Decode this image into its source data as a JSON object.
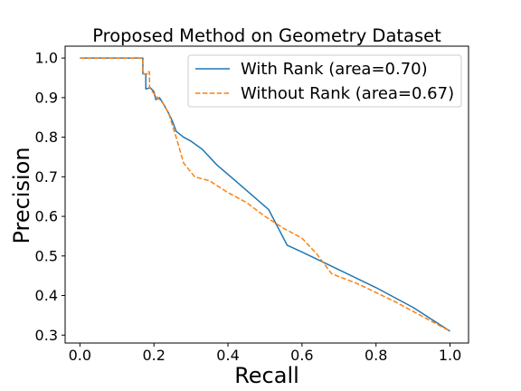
{
  "chart_data": {
    "type": "line",
    "title": "Proposed Method on Geometry Dataset",
    "xlabel": "Recall",
    "ylabel": "Precision",
    "xlim": [
      -0.04,
      1.05
    ],
    "ylim": [
      0.28,
      1.03
    ],
    "xticks": [
      0.0,
      0.2,
      0.4,
      0.6,
      0.8,
      1.0
    ],
    "xtick_labels": [
      "0.0",
      "0.2",
      "0.4",
      "0.6",
      "0.8",
      "1.0"
    ],
    "yticks": [
      0.3,
      0.4,
      0.5,
      0.6,
      0.7,
      0.8,
      0.9,
      1.0
    ],
    "ytick_labels": [
      "0.3",
      "0.4",
      "0.5",
      "0.6",
      "0.7",
      "0.8",
      "0.9",
      "1.0"
    ],
    "grid": false,
    "legend_position": "top-right",
    "series": [
      {
        "name": "With Rank (area=0.70)",
        "color": "#1f77b4",
        "dash": "solid",
        "points": [
          [
            0.0,
            1.0
          ],
          [
            0.17,
            1.0
          ],
          [
            0.17,
            0.96
          ],
          [
            0.178,
            0.96
          ],
          [
            0.178,
            0.922
          ],
          [
            0.19,
            0.925
          ],
          [
            0.2,
            0.915
          ],
          [
            0.205,
            0.895
          ],
          [
            0.215,
            0.9
          ],
          [
            0.225,
            0.885
          ],
          [
            0.24,
            0.86
          ],
          [
            0.25,
            0.84
          ],
          [
            0.26,
            0.815
          ],
          [
            0.28,
            0.8
          ],
          [
            0.3,
            0.79
          ],
          [
            0.33,
            0.77
          ],
          [
            0.37,
            0.73
          ],
          [
            0.42,
            0.69
          ],
          [
            0.51,
            0.617
          ],
          [
            0.56,
            0.527
          ],
          [
            0.6,
            0.51
          ],
          [
            0.7,
            0.465
          ],
          [
            0.8,
            0.42
          ],
          [
            0.9,
            0.37
          ],
          [
            1.0,
            0.31
          ]
        ]
      },
      {
        "name": "Without Rank (area=0.67)",
        "color": "#ff7f0e",
        "dash": "dashed",
        "points": [
          [
            0.0,
            1.0
          ],
          [
            0.17,
            1.0
          ],
          [
            0.17,
            0.96
          ],
          [
            0.183,
            0.96
          ],
          [
            0.183,
            0.965
          ],
          [
            0.188,
            0.965
          ],
          [
            0.188,
            0.925
          ],
          [
            0.2,
            0.91
          ],
          [
            0.21,
            0.9
          ],
          [
            0.225,
            0.885
          ],
          [
            0.24,
            0.86
          ],
          [
            0.26,
            0.8
          ],
          [
            0.28,
            0.735
          ],
          [
            0.31,
            0.7
          ],
          [
            0.35,
            0.69
          ],
          [
            0.4,
            0.66
          ],
          [
            0.45,
            0.635
          ],
          [
            0.5,
            0.6
          ],
          [
            0.55,
            0.57
          ],
          [
            0.6,
            0.545
          ],
          [
            0.64,
            0.505
          ],
          [
            0.68,
            0.455
          ],
          [
            0.75,
            0.43
          ],
          [
            0.85,
            0.385
          ],
          [
            0.95,
            0.335
          ],
          [
            1.0,
            0.31
          ]
        ]
      }
    ]
  }
}
